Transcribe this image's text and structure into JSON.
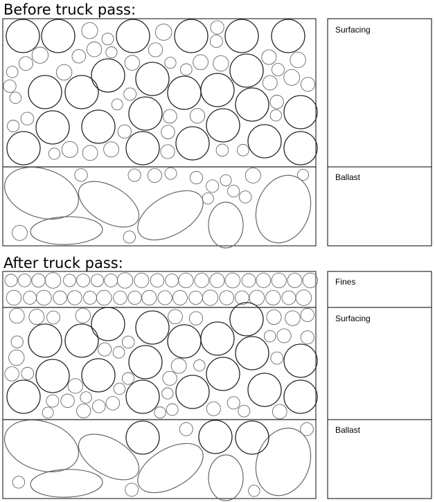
{
  "before": {
    "title": "Before truck pass:",
    "layers": {
      "surfacing": "Surfacing",
      "ballast": "Ballast"
    }
  },
  "after": {
    "title": "After truck pass:",
    "layers": {
      "fines": "Fines",
      "surfacing": "Surfacing",
      "ballast": "Ballast"
    }
  }
}
